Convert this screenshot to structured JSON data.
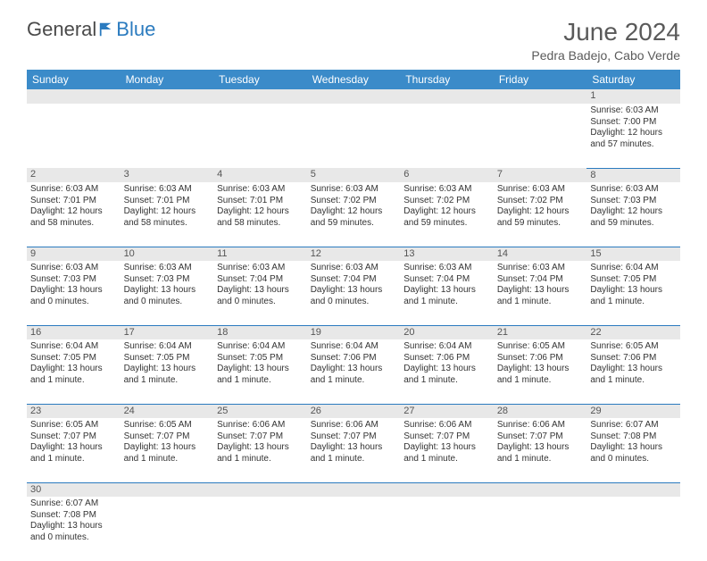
{
  "logo": {
    "part1": "General",
    "part2": "Blue"
  },
  "title": "June 2024",
  "location": "Pedra Badejo, Cabo Verde",
  "colors": {
    "header_bg": "#3b8bc9",
    "header_text": "#ffffff",
    "daynum_bg": "#e8e8e8",
    "border": "#2b7bbf",
    "logo_gray": "#4a4a4a",
    "logo_blue": "#2b7bbf",
    "title_color": "#5a5a5a"
  },
  "weekdays": [
    "Sunday",
    "Monday",
    "Tuesday",
    "Wednesday",
    "Thursday",
    "Friday",
    "Saturday"
  ],
  "weeks": [
    [
      null,
      null,
      null,
      null,
      null,
      null,
      {
        "n": "1",
        "sr": "Sunrise: 6:03 AM",
        "ss": "Sunset: 7:00 PM",
        "d1": "Daylight: 12 hours",
        "d2": "and 57 minutes."
      }
    ],
    [
      {
        "n": "2",
        "sr": "Sunrise: 6:03 AM",
        "ss": "Sunset: 7:01 PM",
        "d1": "Daylight: 12 hours",
        "d2": "and 58 minutes."
      },
      {
        "n": "3",
        "sr": "Sunrise: 6:03 AM",
        "ss": "Sunset: 7:01 PM",
        "d1": "Daylight: 12 hours",
        "d2": "and 58 minutes."
      },
      {
        "n": "4",
        "sr": "Sunrise: 6:03 AM",
        "ss": "Sunset: 7:01 PM",
        "d1": "Daylight: 12 hours",
        "d2": "and 58 minutes."
      },
      {
        "n": "5",
        "sr": "Sunrise: 6:03 AM",
        "ss": "Sunset: 7:02 PM",
        "d1": "Daylight: 12 hours",
        "d2": "and 59 minutes."
      },
      {
        "n": "6",
        "sr": "Sunrise: 6:03 AM",
        "ss": "Sunset: 7:02 PM",
        "d1": "Daylight: 12 hours",
        "d2": "and 59 minutes."
      },
      {
        "n": "7",
        "sr": "Sunrise: 6:03 AM",
        "ss": "Sunset: 7:02 PM",
        "d1": "Daylight: 12 hours",
        "d2": "and 59 minutes."
      },
      {
        "n": "8",
        "sr": "Sunrise: 6:03 AM",
        "ss": "Sunset: 7:03 PM",
        "d1": "Daylight: 12 hours",
        "d2": "and 59 minutes."
      }
    ],
    [
      {
        "n": "9",
        "sr": "Sunrise: 6:03 AM",
        "ss": "Sunset: 7:03 PM",
        "d1": "Daylight: 13 hours",
        "d2": "and 0 minutes."
      },
      {
        "n": "10",
        "sr": "Sunrise: 6:03 AM",
        "ss": "Sunset: 7:03 PM",
        "d1": "Daylight: 13 hours",
        "d2": "and 0 minutes."
      },
      {
        "n": "11",
        "sr": "Sunrise: 6:03 AM",
        "ss": "Sunset: 7:04 PM",
        "d1": "Daylight: 13 hours",
        "d2": "and 0 minutes."
      },
      {
        "n": "12",
        "sr": "Sunrise: 6:03 AM",
        "ss": "Sunset: 7:04 PM",
        "d1": "Daylight: 13 hours",
        "d2": "and 0 minutes."
      },
      {
        "n": "13",
        "sr": "Sunrise: 6:03 AM",
        "ss": "Sunset: 7:04 PM",
        "d1": "Daylight: 13 hours",
        "d2": "and 1 minute."
      },
      {
        "n": "14",
        "sr": "Sunrise: 6:03 AM",
        "ss": "Sunset: 7:04 PM",
        "d1": "Daylight: 13 hours",
        "d2": "and 1 minute."
      },
      {
        "n": "15",
        "sr": "Sunrise: 6:04 AM",
        "ss": "Sunset: 7:05 PM",
        "d1": "Daylight: 13 hours",
        "d2": "and 1 minute."
      }
    ],
    [
      {
        "n": "16",
        "sr": "Sunrise: 6:04 AM",
        "ss": "Sunset: 7:05 PM",
        "d1": "Daylight: 13 hours",
        "d2": "and 1 minute."
      },
      {
        "n": "17",
        "sr": "Sunrise: 6:04 AM",
        "ss": "Sunset: 7:05 PM",
        "d1": "Daylight: 13 hours",
        "d2": "and 1 minute."
      },
      {
        "n": "18",
        "sr": "Sunrise: 6:04 AM",
        "ss": "Sunset: 7:05 PM",
        "d1": "Daylight: 13 hours",
        "d2": "and 1 minute."
      },
      {
        "n": "19",
        "sr": "Sunrise: 6:04 AM",
        "ss": "Sunset: 7:06 PM",
        "d1": "Daylight: 13 hours",
        "d2": "and 1 minute."
      },
      {
        "n": "20",
        "sr": "Sunrise: 6:04 AM",
        "ss": "Sunset: 7:06 PM",
        "d1": "Daylight: 13 hours",
        "d2": "and 1 minute."
      },
      {
        "n": "21",
        "sr": "Sunrise: 6:05 AM",
        "ss": "Sunset: 7:06 PM",
        "d1": "Daylight: 13 hours",
        "d2": "and 1 minute."
      },
      {
        "n": "22",
        "sr": "Sunrise: 6:05 AM",
        "ss": "Sunset: 7:06 PM",
        "d1": "Daylight: 13 hours",
        "d2": "and 1 minute."
      }
    ],
    [
      {
        "n": "23",
        "sr": "Sunrise: 6:05 AM",
        "ss": "Sunset: 7:07 PM",
        "d1": "Daylight: 13 hours",
        "d2": "and 1 minute."
      },
      {
        "n": "24",
        "sr": "Sunrise: 6:05 AM",
        "ss": "Sunset: 7:07 PM",
        "d1": "Daylight: 13 hours",
        "d2": "and 1 minute."
      },
      {
        "n": "25",
        "sr": "Sunrise: 6:06 AM",
        "ss": "Sunset: 7:07 PM",
        "d1": "Daylight: 13 hours",
        "d2": "and 1 minute."
      },
      {
        "n": "26",
        "sr": "Sunrise: 6:06 AM",
        "ss": "Sunset: 7:07 PM",
        "d1": "Daylight: 13 hours",
        "d2": "and 1 minute."
      },
      {
        "n": "27",
        "sr": "Sunrise: 6:06 AM",
        "ss": "Sunset: 7:07 PM",
        "d1": "Daylight: 13 hours",
        "d2": "and 1 minute."
      },
      {
        "n": "28",
        "sr": "Sunrise: 6:06 AM",
        "ss": "Sunset: 7:07 PM",
        "d1": "Daylight: 13 hours",
        "d2": "and 1 minute."
      },
      {
        "n": "29",
        "sr": "Sunrise: 6:07 AM",
        "ss": "Sunset: 7:08 PM",
        "d1": "Daylight: 13 hours",
        "d2": "and 0 minutes."
      }
    ],
    [
      {
        "n": "30",
        "sr": "Sunrise: 6:07 AM",
        "ss": "Sunset: 7:08 PM",
        "d1": "Daylight: 13 hours",
        "d2": "and 0 minutes."
      },
      null,
      null,
      null,
      null,
      null,
      null
    ]
  ]
}
